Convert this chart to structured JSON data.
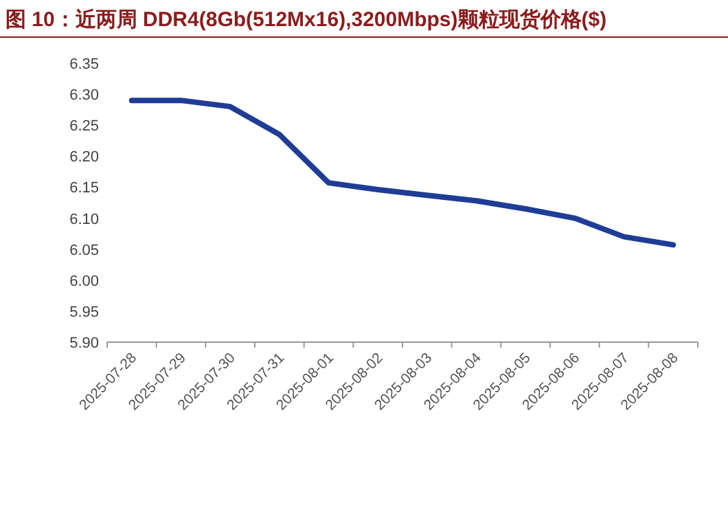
{
  "chart_data": {
    "type": "line",
    "title": "图 10：近两周 DDR4(8Gb(512Mx16),3200Mbps)颗粒现货价格($)",
    "categories": [
      "2025-07-28",
      "2025-07-29",
      "2025-07-30",
      "2025-07-31",
      "2025-08-01",
      "2025-08-02",
      "2025-08-03",
      "2025-08-04",
      "2025-08-05",
      "2025-08-06",
      "2025-08-07",
      "2025-08-08"
    ],
    "series": [
      {
        "color": "#1f3c96",
        "values": [
          6.29,
          6.29,
          6.28,
          6.235,
          6.157,
          6.146,
          6.137,
          6.128,
          6.115,
          6.1,
          6.07,
          6.057
        ]
      }
    ],
    "ylim": [
      5.9,
      6.35
    ],
    "yticks": [
      {
        "value": 5.9,
        "label": "5.90"
      },
      {
        "value": 5.95,
        "label": "5.95"
      },
      {
        "value": 6.0,
        "label": "6.00"
      },
      {
        "value": 6.05,
        "label": "6.05"
      },
      {
        "value": 6.1,
        "label": "6.10"
      },
      {
        "value": 6.15,
        "label": "6.15"
      },
      {
        "value": 6.2,
        "label": "6.20"
      },
      {
        "value": 6.25,
        "label": "6.25"
      },
      {
        "value": 6.3,
        "label": "6.30"
      },
      {
        "value": 6.35,
        "label": "6.35"
      }
    ]
  }
}
